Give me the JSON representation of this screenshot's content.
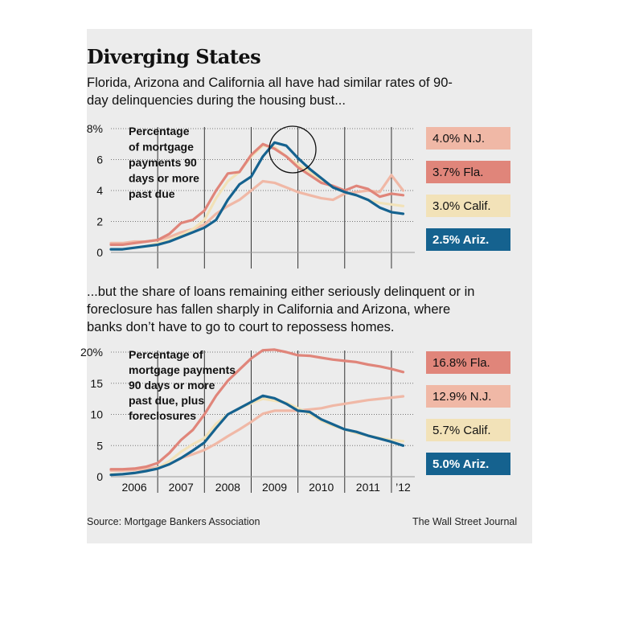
{
  "title": "Diverging States",
  "subtitle1": "Florida, Arizona and California all have had similar rates of 90-day delinquencies during the housing bust...",
  "subtitle2": "...but the share of loans remaining either seriously delinquent or in foreclosure has fallen sharply in California and Arizona, where banks don’t have to go to court to repossess homes.",
  "source": "Source: Mortgage Bankers Association",
  "credit": "The Wall Street Journal",
  "colors": {
    "nj": "#f0b8a6",
    "fla": "#e0857a",
    "calif": "#f2e2b8",
    "ariz": "#15628f"
  },
  "chart_data": [
    {
      "type": "line",
      "title": [
        "Percentage",
        "of mortgage",
        "payments 90",
        "days or more",
        "past due"
      ],
      "ylim": [
        0,
        8
      ],
      "yticks": [
        "0",
        "2",
        "4",
        "6",
        "8%"
      ],
      "x": [
        2006.0,
        2006.25,
        2006.5,
        2006.75,
        2007.0,
        2007.25,
        2007.5,
        2007.75,
        2008.0,
        2008.25,
        2008.5,
        2008.75,
        2009.0,
        2009.25,
        2009.5,
        2009.75,
        2010.0,
        2010.25,
        2010.5,
        2010.75,
        2011.0,
        2011.25,
        2011.5,
        2011.75,
        2012.0,
        2012.25
      ],
      "series": [
        {
          "name": "N.J.",
          "label": "4.0% N.J.",
          "color": "#f0b8a6",
          "values": [
            0.6,
            0.6,
            0.7,
            0.7,
            0.8,
            1.0,
            1.3,
            1.5,
            1.8,
            2.5,
            3.0,
            3.4,
            4.0,
            4.6,
            4.5,
            4.2,
            3.9,
            3.7,
            3.5,
            3.4,
            3.8,
            3.9,
            4.0,
            3.9,
            5.0,
            4.0
          ]
        },
        {
          "name": "Fla.",
          "label": "3.7% Fla.",
          "color": "#e0857a",
          "values": [
            0.5,
            0.5,
            0.6,
            0.7,
            0.8,
            1.2,
            1.9,
            2.1,
            2.7,
            4.0,
            5.1,
            5.2,
            6.3,
            7.0,
            6.7,
            6.2,
            5.5,
            5.0,
            4.5,
            4.3,
            4.0,
            4.3,
            4.1,
            3.6,
            3.8,
            3.7
          ]
        },
        {
          "name": "Calif.",
          "label": "3.0% Calif.",
          "color": "#f2e2b8",
          "values": [
            0.2,
            0.2,
            0.3,
            0.4,
            0.6,
            0.8,
            1.1,
            1.5,
            2.1,
            3.5,
            4.6,
            5.2,
            6.2,
            6.9,
            6.8,
            6.2,
            5.7,
            5.2,
            4.6,
            4.2,
            3.9,
            3.7,
            3.4,
            3.2,
            3.1,
            3.0
          ]
        },
        {
          "name": "Ariz.",
          "label": "2.5% Ariz.",
          "color": "#15628f",
          "values": [
            0.2,
            0.2,
            0.3,
            0.4,
            0.5,
            0.7,
            1.0,
            1.3,
            1.6,
            2.1,
            3.4,
            4.4,
            4.9,
            6.2,
            7.1,
            6.9,
            6.1,
            5.4,
            4.8,
            4.2,
            3.9,
            3.7,
            3.4,
            2.9,
            2.6,
            2.5
          ]
        }
      ]
    },
    {
      "type": "line",
      "title": [
        "Percentage of",
        "mortgage payments",
        "90 days or more",
        "past due, plus",
        "foreclosures"
      ],
      "ylim": [
        0,
        20
      ],
      "yticks": [
        "0",
        "5",
        "10",
        "15",
        "20%"
      ],
      "xlabels": [
        "2006",
        "2007",
        "2008",
        "2009",
        "2010",
        "2011",
        "’12"
      ],
      "x": [
        2006.0,
        2006.25,
        2006.5,
        2006.75,
        2007.0,
        2007.25,
        2007.5,
        2007.75,
        2008.0,
        2008.25,
        2008.5,
        2008.75,
        2009.0,
        2009.25,
        2009.5,
        2009.75,
        2010.0,
        2010.25,
        2010.5,
        2010.75,
        2011.0,
        2011.25,
        2011.5,
        2011.75,
        2012.0,
        2012.25
      ],
      "series": [
        {
          "name": "Fla.",
          "label": "16.8% Fla.",
          "color": "#e0857a",
          "values": [
            1.2,
            1.2,
            1.3,
            1.6,
            2.2,
            3.8,
            5.9,
            7.5,
            10.0,
            13.0,
            15.4,
            17.2,
            19.0,
            20.3,
            20.4,
            20.0,
            19.5,
            19.4,
            19.1,
            18.8,
            18.6,
            18.4,
            18.0,
            17.7,
            17.3,
            16.8
          ]
        },
        {
          "name": "N.J.",
          "label": "12.9% N.J.",
          "color": "#f0b8a6",
          "values": [
            1.0,
            1.0,
            1.1,
            1.3,
            1.5,
            2.0,
            3.0,
            3.6,
            4.3,
            5.3,
            6.5,
            7.6,
            8.8,
            10.1,
            10.6,
            10.6,
            10.6,
            10.8,
            11.0,
            11.4,
            11.7,
            12.0,
            12.3,
            12.5,
            12.7,
            12.9
          ]
        },
        {
          "name": "Calif.",
          "label": "5.7% Calif.",
          "color": "#f2e2b8",
          "values": [
            0.4,
            0.4,
            0.6,
            0.9,
            1.4,
            2.5,
            4.0,
            5.2,
            6.2,
            8.5,
            10.0,
            11.0,
            11.8,
            12.5,
            12.2,
            11.9,
            11.0,
            10.1,
            9.0,
            8.2,
            7.6,
            7.0,
            6.6,
            6.2,
            5.9,
            5.7
          ]
        },
        {
          "name": "Ariz.",
          "label": "5.0% Ariz.",
          "color": "#15628f",
          "values": [
            0.3,
            0.4,
            0.6,
            0.9,
            1.3,
            2.0,
            3.0,
            4.2,
            5.5,
            7.8,
            10.0,
            11.0,
            12.0,
            13.0,
            12.6,
            11.7,
            10.6,
            10.4,
            9.2,
            8.4,
            7.6,
            7.2,
            6.6,
            6.1,
            5.6,
            5.0
          ]
        }
      ]
    }
  ]
}
